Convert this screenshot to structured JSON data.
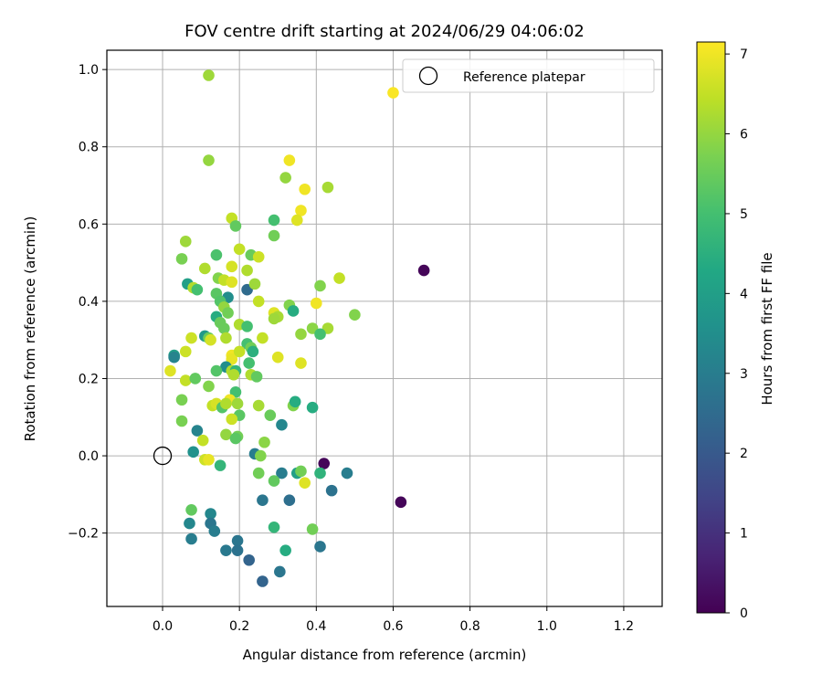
{
  "chart_data": {
    "type": "scatter",
    "title": "FOV centre drift starting at 2024/06/29 04:06:02",
    "xlabel": "Angular distance from reference (arcmin)",
    "ylabel": "Rotation from reference (arcmin)",
    "xlim": [
      -0.145,
      1.3
    ],
    "ylim": [
      -0.39,
      1.05
    ],
    "xticks": [
      0.0,
      0.2,
      0.4,
      0.6,
      0.8,
      1.0,
      1.2
    ],
    "xtick_labels": [
      "0.0",
      "0.2",
      "0.4",
      "0.6",
      "0.8",
      "1.0",
      "1.2"
    ],
    "yticks": [
      -0.2,
      0.0,
      0.2,
      0.4,
      0.6,
      0.8,
      1.0
    ],
    "ytick_labels": [
      "−0.2",
      "0.0",
      "0.2",
      "0.4",
      "0.6",
      "0.8",
      "1.0"
    ],
    "grid": true,
    "legend": {
      "position": "top-right",
      "entries": [
        "Reference platepar"
      ]
    },
    "reference_point": {
      "x": 0.0,
      "y": 0.0
    },
    "colorbar": {
      "label": "Hours from first FF file",
      "colormap": "viridis",
      "range": [
        0,
        7.15
      ],
      "ticks": [
        0,
        1,
        2,
        3,
        4,
        5,
        6,
        7
      ],
      "tick_labels": [
        "0",
        "1",
        "2",
        "3",
        "4",
        "5",
        "6",
        "7"
      ]
    },
    "points": [
      [
        0.6,
        0.94,
        7.1
      ],
      [
        0.68,
        0.48,
        0.1
      ],
      [
        0.62,
        -0.12,
        0.1
      ],
      [
        0.42,
        -0.02,
        0.1
      ],
      [
        0.12,
        0.985,
        6.1
      ],
      [
        0.12,
        0.765,
        6.0
      ],
      [
        0.33,
        0.765,
        7.0
      ],
      [
        0.32,
        0.72,
        6.0
      ],
      [
        0.37,
        0.69,
        7.0
      ],
      [
        0.43,
        0.695,
        6.2
      ],
      [
        0.36,
        0.635,
        7.0
      ],
      [
        0.35,
        0.61,
        6.8
      ],
      [
        0.18,
        0.615,
        6.5
      ],
      [
        0.19,
        0.595,
        5.4
      ],
      [
        0.29,
        0.61,
        5.0
      ],
      [
        0.29,
        0.57,
        5.6
      ],
      [
        0.06,
        0.555,
        6.1
      ],
      [
        0.2,
        0.535,
        6.5
      ],
      [
        0.14,
        0.52,
        5.1
      ],
      [
        0.23,
        0.52,
        5.5
      ],
      [
        0.25,
        0.515,
        6.6
      ],
      [
        0.05,
        0.51,
        5.7
      ],
      [
        0.11,
        0.485,
        6.3
      ],
      [
        0.18,
        0.49,
        6.7
      ],
      [
        0.22,
        0.48,
        6.3
      ],
      [
        0.145,
        0.46,
        5.8
      ],
      [
        0.16,
        0.455,
        6.5
      ],
      [
        0.18,
        0.45,
        6.8
      ],
      [
        0.065,
        0.445,
        4.0
      ],
      [
        0.08,
        0.435,
        6.3
      ],
      [
        0.09,
        0.43,
        5.0
      ],
      [
        0.14,
        0.42,
        5.3
      ],
      [
        0.17,
        0.41,
        3.5
      ],
      [
        0.22,
        0.43,
        2.5
      ],
      [
        0.24,
        0.445,
        6.1
      ],
      [
        0.25,
        0.4,
        6.5
      ],
      [
        0.41,
        0.44,
        5.8
      ],
      [
        0.46,
        0.46,
        6.5
      ],
      [
        0.33,
        0.39,
        5.8
      ],
      [
        0.34,
        0.375,
        4.4
      ],
      [
        0.15,
        0.4,
        5.2
      ],
      [
        0.16,
        0.385,
        6.0
      ],
      [
        0.17,
        0.37,
        5.6
      ],
      [
        0.14,
        0.36,
        4.4
      ],
      [
        0.15,
        0.345,
        5.5
      ],
      [
        0.16,
        0.33,
        5.5
      ],
      [
        0.2,
        0.34,
        6.3
      ],
      [
        0.22,
        0.335,
        5.0
      ],
      [
        0.29,
        0.37,
        6.8
      ],
      [
        0.3,
        0.36,
        6.2
      ],
      [
        0.29,
        0.355,
        6.1
      ],
      [
        0.39,
        0.33,
        5.9
      ],
      [
        0.4,
        0.395,
        7.0
      ],
      [
        0.43,
        0.33,
        6.2
      ],
      [
        0.41,
        0.315,
        5.0
      ],
      [
        0.36,
        0.315,
        6.0
      ],
      [
        0.5,
        0.365,
        5.8
      ],
      [
        0.11,
        0.31,
        3.8
      ],
      [
        0.12,
        0.305,
        5.5
      ],
      [
        0.125,
        0.3,
        6.7
      ],
      [
        0.165,
        0.305,
        6.3
      ],
      [
        0.075,
        0.305,
        6.6
      ],
      [
        0.22,
        0.29,
        5.0
      ],
      [
        0.23,
        0.28,
        5.6
      ],
      [
        0.235,
        0.27,
        4.5
      ],
      [
        0.26,
        0.305,
        6.5
      ],
      [
        0.06,
        0.27,
        6.6
      ],
      [
        0.03,
        0.26,
        4.0
      ],
      [
        0.03,
        0.255,
        3.2
      ],
      [
        0.18,
        0.26,
        7.0
      ],
      [
        0.18,
        0.25,
        6.9
      ],
      [
        0.2,
        0.27,
        6.5
      ],
      [
        0.3,
        0.255,
        6.8
      ],
      [
        0.36,
        0.24,
        6.8
      ],
      [
        0.02,
        0.22,
        6.8
      ],
      [
        0.165,
        0.23,
        3.5
      ],
      [
        0.18,
        0.22,
        6.3
      ],
      [
        0.19,
        0.22,
        4.7
      ],
      [
        0.185,
        0.21,
        6.3
      ],
      [
        0.14,
        0.22,
        5.2
      ],
      [
        0.225,
        0.24,
        5.0
      ],
      [
        0.23,
        0.21,
        6.3
      ],
      [
        0.245,
        0.205,
        5.4
      ],
      [
        0.06,
        0.195,
        6.5
      ],
      [
        0.085,
        0.2,
        5.4
      ],
      [
        0.12,
        0.18,
        5.8
      ],
      [
        0.19,
        0.165,
        5.0
      ],
      [
        0.05,
        0.145,
        5.7
      ],
      [
        0.175,
        0.145,
        7.0
      ],
      [
        0.13,
        0.13,
        6.5
      ],
      [
        0.14,
        0.135,
        6.7
      ],
      [
        0.155,
        0.125,
        5.2
      ],
      [
        0.165,
        0.135,
        6.3
      ],
      [
        0.195,
        0.135,
        6.1
      ],
      [
        0.25,
        0.13,
        6.2
      ],
      [
        0.34,
        0.13,
        5.8
      ],
      [
        0.345,
        0.14,
        4.4
      ],
      [
        0.39,
        0.125,
        4.4
      ],
      [
        0.05,
        0.09,
        5.7
      ],
      [
        0.2,
        0.105,
        5.3
      ],
      [
        0.28,
        0.105,
        5.5
      ],
      [
        0.31,
        0.08,
        3.3
      ],
      [
        0.09,
        0.065,
        3.2
      ],
      [
        0.165,
        0.055,
        6.0
      ],
      [
        0.18,
        0.095,
        6.6
      ],
      [
        0.195,
        0.05,
        5.6
      ],
      [
        0.19,
        0.045,
        5.3
      ],
      [
        0.105,
        0.04,
        6.5
      ],
      [
        0.265,
        0.035,
        5.9
      ],
      [
        0.08,
        0.01,
        3.6
      ],
      [
        0.24,
        0.005,
        3.0
      ],
      [
        0.255,
        0.0,
        5.8
      ],
      [
        0.11,
        -0.01,
        6.6
      ],
      [
        0.12,
        -0.01,
        6.9
      ],
      [
        0.15,
        -0.025,
        4.7
      ],
      [
        0.25,
        -0.045,
        5.6
      ],
      [
        0.31,
        -0.045,
        3.0
      ],
      [
        0.35,
        -0.045,
        4.0
      ],
      [
        0.36,
        -0.04,
        5.6
      ],
      [
        0.41,
        -0.045,
        4.6
      ],
      [
        0.48,
        -0.045,
        3.0
      ],
      [
        0.29,
        -0.065,
        5.4
      ],
      [
        0.37,
        -0.07,
        6.8
      ],
      [
        0.44,
        -0.09,
        2.7
      ],
      [
        0.26,
        -0.115,
        2.8
      ],
      [
        0.33,
        -0.115,
        2.6
      ],
      [
        0.075,
        -0.14,
        5.4
      ],
      [
        0.125,
        -0.15,
        3.3
      ],
      [
        0.125,
        -0.175,
        2.8
      ],
      [
        0.07,
        -0.175,
        3.3
      ],
      [
        0.135,
        -0.195,
        3.0
      ],
      [
        0.29,
        -0.185,
        4.7
      ],
      [
        0.39,
        -0.19,
        5.6
      ],
      [
        0.075,
        -0.215,
        3.0
      ],
      [
        0.195,
        -0.22,
        2.8
      ],
      [
        0.41,
        -0.235,
        2.8
      ],
      [
        0.165,
        -0.245,
        2.9
      ],
      [
        0.195,
        -0.245,
        2.7
      ],
      [
        0.32,
        -0.245,
        4.4
      ],
      [
        0.225,
        -0.27,
        2.3
      ],
      [
        0.305,
        -0.3,
        2.8
      ],
      [
        0.26,
        -0.325,
        2.3
      ]
    ]
  }
}
